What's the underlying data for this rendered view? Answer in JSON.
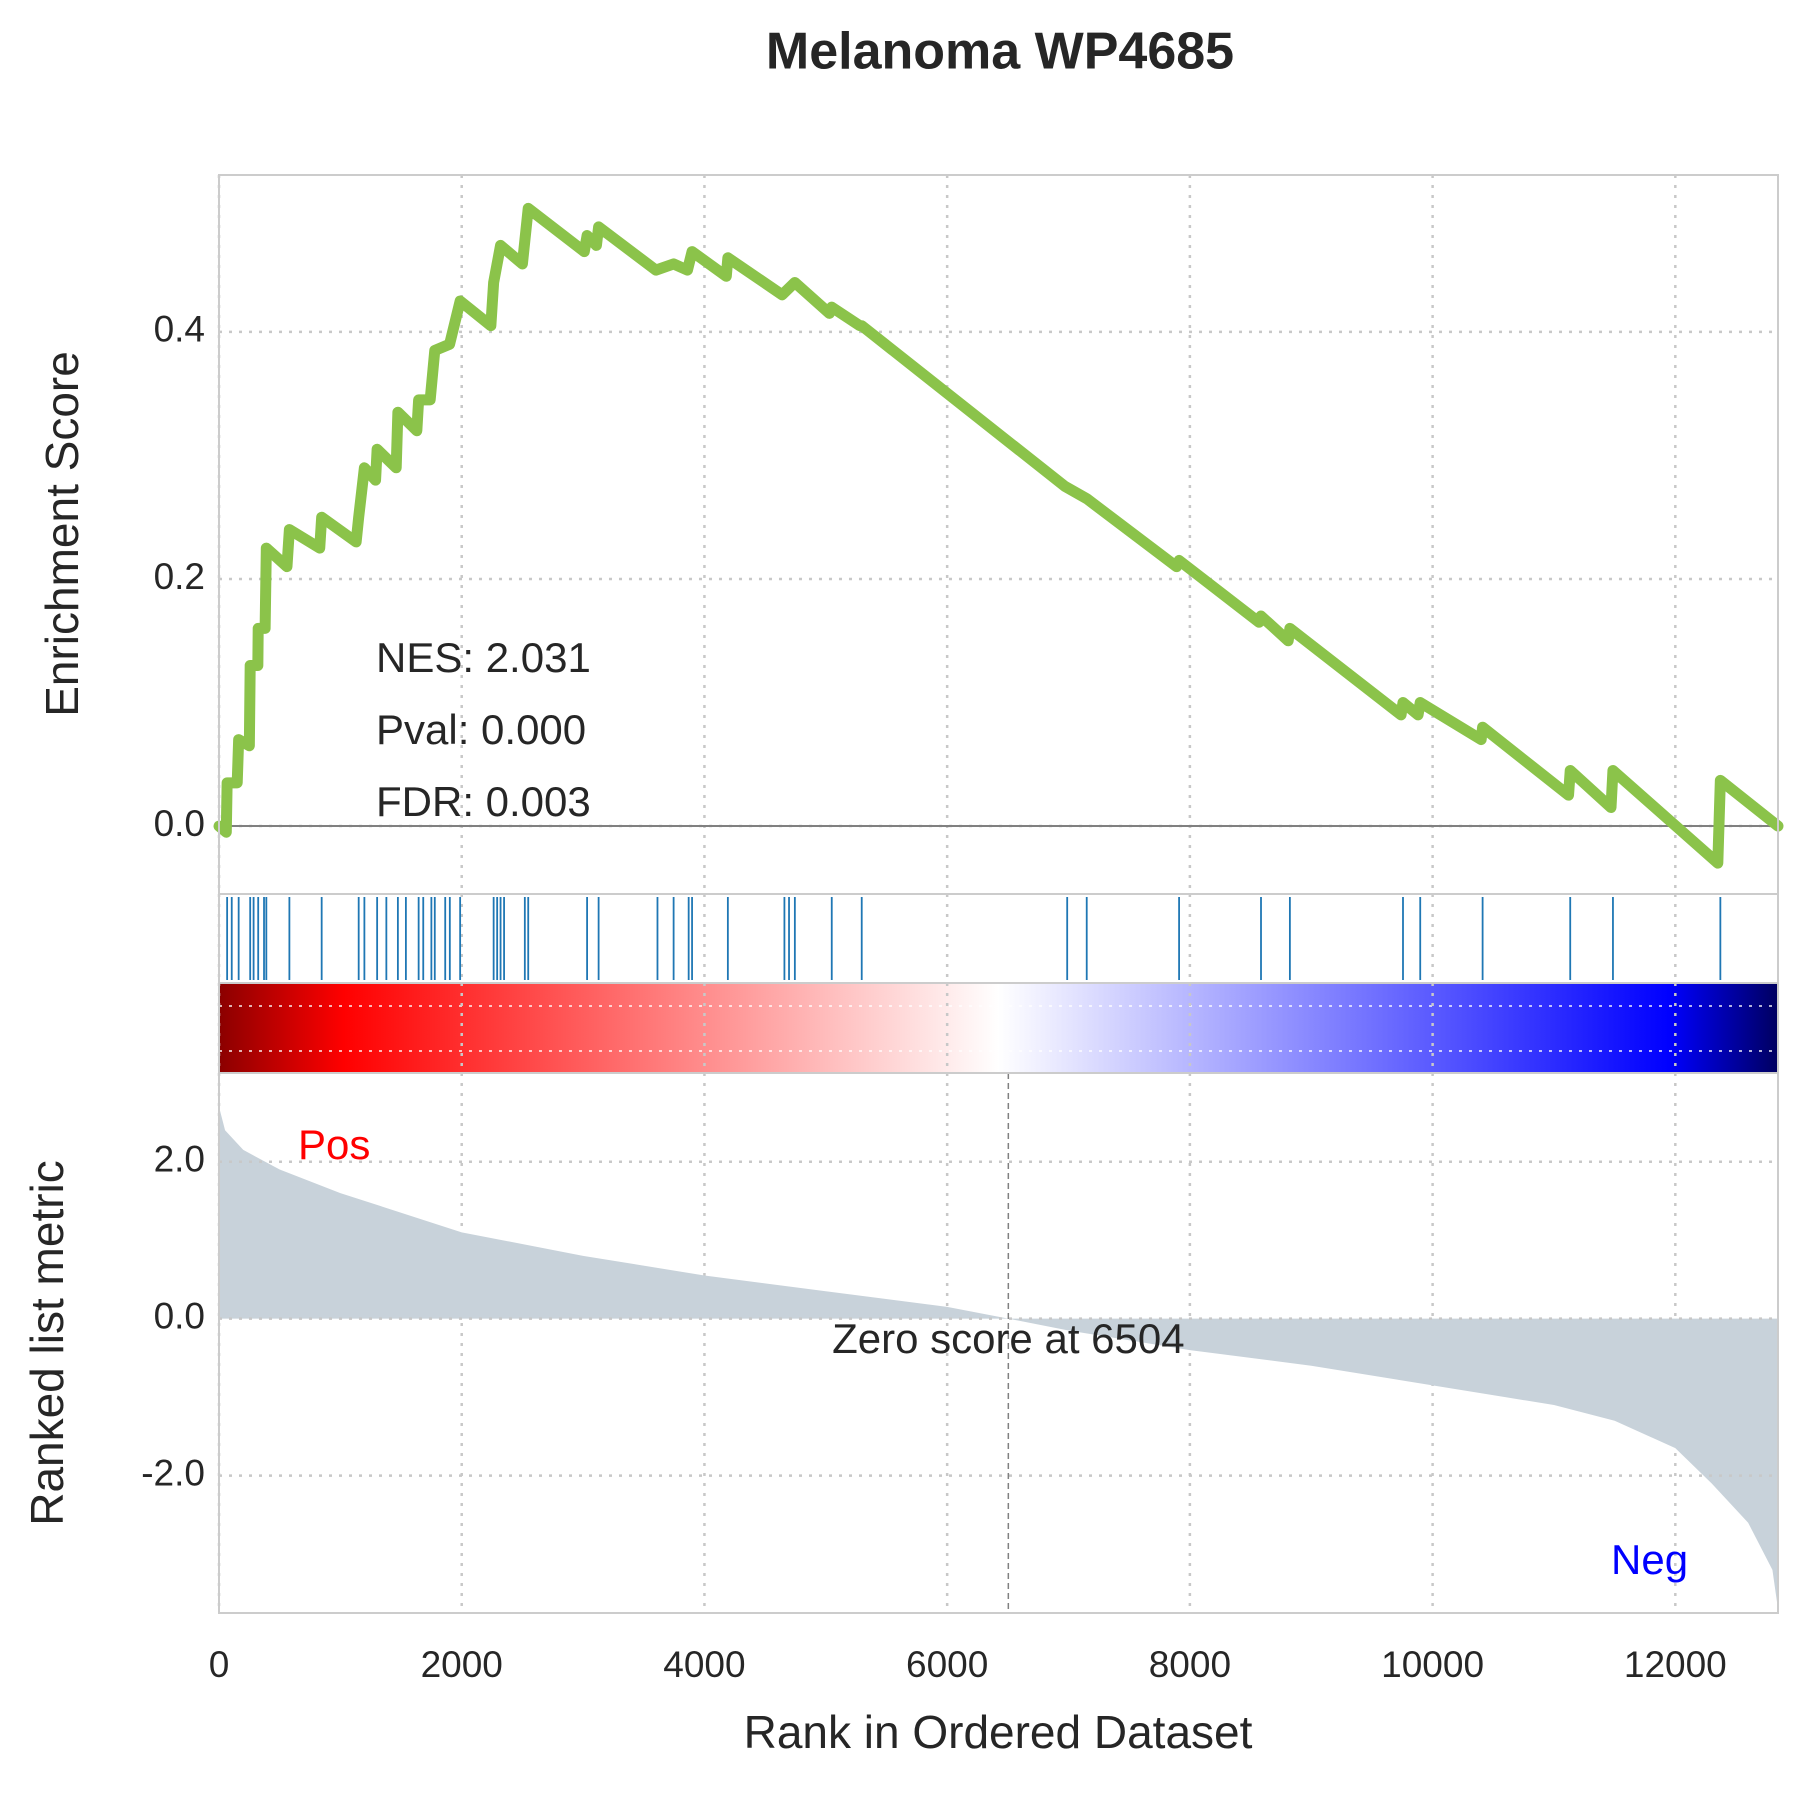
{
  "chart_data": [
    {
      "type": "line",
      "title": "Melanoma WP4685",
      "ylabel": "Enrichment Score",
      "color": "#8bc34a",
      "x": [
        0,
        60,
        67,
        150,
        162,
        250,
        257,
        320,
        323,
        380,
        390,
        560,
        580,
        830,
        846,
        1130,
        1151,
        1198,
        1290,
        1303,
        1460,
        1474,
        1630,
        1645,
        1740,
        1778,
        1900,
        1987,
        2240,
        2263,
        2320,
        2500,
        2548,
        3010,
        3033,
        3110,
        3128,
        3600,
        3746,
        3860,
        3898,
        4180,
        4193,
        4640,
        4745,
        5030,
        5049,
        5280,
        5296,
        6970,
        7150,
        7890,
        7911,
        8570,
        8586,
        8810,
        8824,
        9740,
        9756,
        9880,
        9898,
        10400,
        10412,
        11120,
        11134,
        11470,
        11486,
        12350,
        12371,
        12846
      ],
      "values": [
        0,
        -0.005,
        0.035,
        0.035,
        0.07,
        0.065,
        0.13,
        0.13,
        0.16,
        0.16,
        0.225,
        0.21,
        0.24,
        0.225,
        0.25,
        0.23,
        0.25,
        0.29,
        0.28,
        0.305,
        0.29,
        0.335,
        0.32,
        0.345,
        0.345,
        0.385,
        0.39,
        0.425,
        0.405,
        0.44,
        0.47,
        0.455,
        0.5,
        0.465,
        0.478,
        0.47,
        0.485,
        0.45,
        0.455,
        0.45,
        0.465,
        0.445,
        0.46,
        0.43,
        0.44,
        0.415,
        0.42,
        0.405,
        0.405,
        0.275,
        0.265,
        0.21,
        0.215,
        0.165,
        0.17,
        0.15,
        0.16,
        0.09,
        0.1,
        0.09,
        0.1,
        0.07,
        0.08,
        0.025,
        0.045,
        0.015,
        0.045,
        -0.03,
        0.037,
        0
      ],
      "xlim": [
        0,
        12846
      ],
      "ylim": [
        -0.055,
        0.527
      ],
      "yticks": [
        {
          "value": 0,
          "label": "0.0"
        },
        {
          "value": 0.2,
          "label": "0.2"
        },
        {
          "value": 0.4,
          "label": "0.4"
        }
      ],
      "grid": true,
      "annotations": [
        "NES: 2.031",
        "Pval: 0.000",
        "FDR: 0.003"
      ]
    },
    {
      "type": "rug",
      "color": "#1f77b4",
      "xlim": [
        0,
        12846
      ],
      "x": [
        67,
        105,
        162,
        257,
        285,
        323,
        371,
        390,
        580,
        846,
        1151,
        1198,
        1303,
        1379,
        1474,
        1540,
        1645,
        1683,
        1750,
        1778,
        1864,
        1902,
        1987,
        2263,
        2292,
        2320,
        2349,
        2520,
        2548,
        3033,
        3128,
        3613,
        3746,
        3870,
        3898,
        4193,
        4659,
        4697,
        4745,
        5049,
        5296,
        6989,
        7150,
        7911,
        8586,
        8824,
        9756,
        9898,
        10412,
        11134,
        11486,
        12371
      ]
    },
    {
      "type": "area",
      "ylabel": "Ranked list metric",
      "xlabel": "Rank in Ordered Dataset",
      "color": "#c8d2da",
      "x": [
        0,
        50,
        200,
        500,
        1000,
        2000,
        3000,
        4000,
        5000,
        6000,
        6504,
        7000,
        8000,
        9000,
        10000,
        11000,
        11500,
        12000,
        12300,
        12600,
        12800,
        12846
      ],
      "values": [
        2.7,
        2.4,
        2.15,
        1.9,
        1.6,
        1.1,
        0.8,
        0.55,
        0.35,
        0.15,
        0,
        -0.15,
        -0.4,
        -0.6,
        -0.85,
        -1.1,
        -1.3,
        -1.65,
        -2.1,
        -2.6,
        -3.2,
        -3.7
      ],
      "xlim": [
        0,
        12846
      ],
      "ylim": [
        -3.75,
        3.13
      ],
      "xticks": [
        0,
        2000,
        4000,
        6000,
        8000,
        10000,
        12000
      ],
      "yticks": [
        {
          "value": -2,
          "label": "-2.0"
        },
        {
          "value": 0,
          "label": "0.0"
        },
        {
          "value": 2,
          "label": "2.0"
        }
      ],
      "grid": true,
      "pos_label": "Pos",
      "neg_label": "Neg",
      "zero_score": {
        "value": 6504,
        "label": "Zero score at 6504"
      }
    }
  ]
}
